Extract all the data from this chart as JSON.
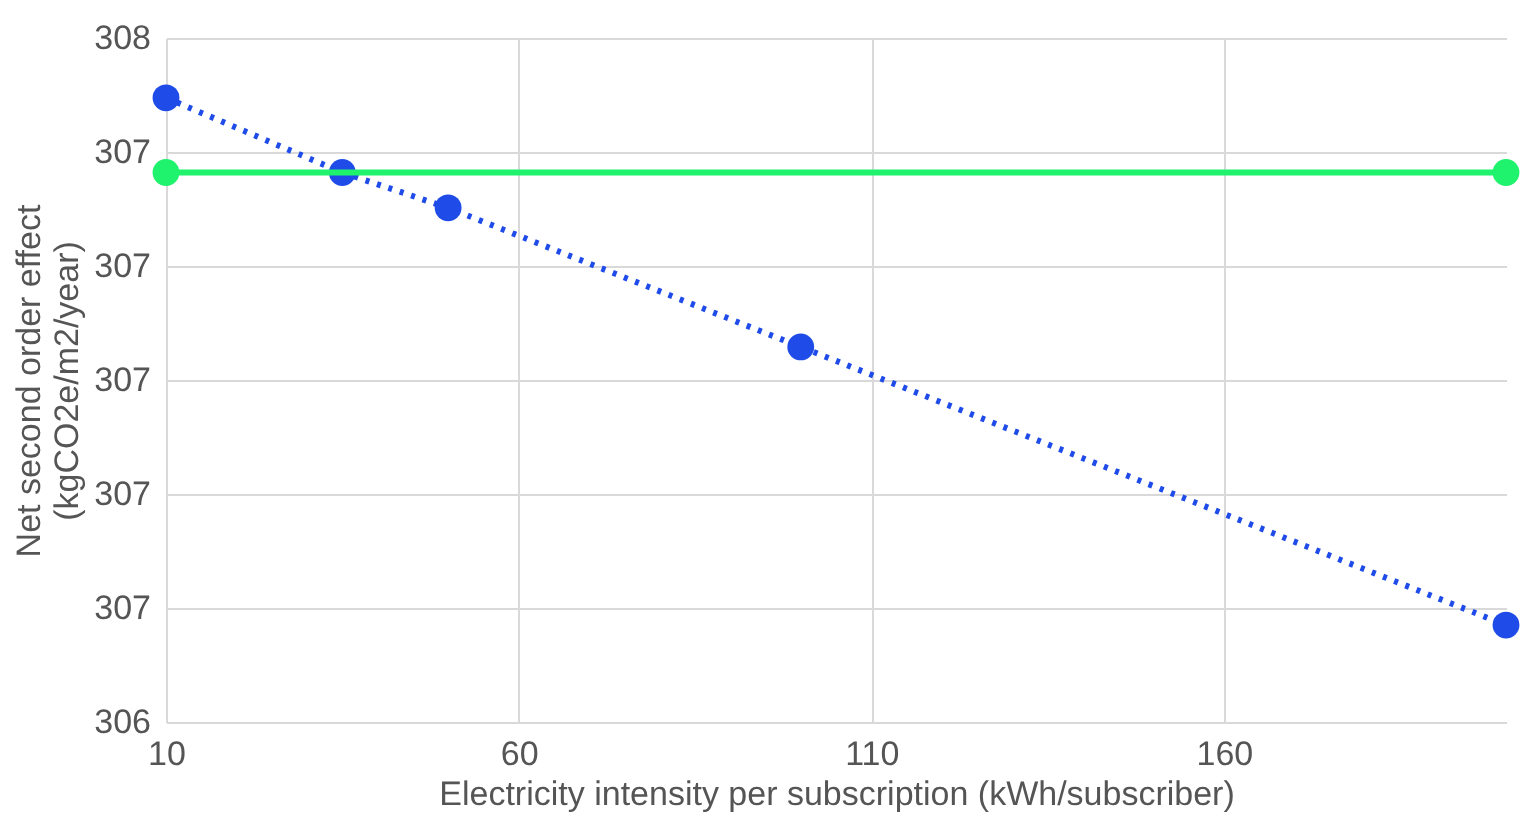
{
  "chart_data": {
    "type": "line",
    "xlabel": "Electricity intensity per subscription (kWh/subscriber)",
    "ylabel": "Net second order effect\n(kgCO2e/m2/year)",
    "xlim": [
      10,
      200
    ],
    "xticks": [
      10,
      60,
      110,
      160
    ],
    "ylim": [
      306.4,
      307.6
    ],
    "yticks": [
      {
        "value": 306.4,
        "label": "306"
      },
      {
        "value": 306.6,
        "label": "307"
      },
      {
        "value": 306.8,
        "label": "307"
      },
      {
        "value": 307.0,
        "label": "307"
      },
      {
        "value": 307.2,
        "label": "307"
      },
      {
        "value": 307.4,
        "label": "307"
      },
      {
        "value": 307.6,
        "label": "308"
      }
    ],
    "grid": true,
    "marker": "circle",
    "series": [
      {
        "color": "#1f4ce8",
        "line_style": "dotted",
        "x": [
          10,
          35,
          50,
          100,
          200
        ],
        "values": [
          307.495,
          307.364,
          307.302,
          307.058,
          306.57
        ]
      },
      {
        "color": "#1ff26c",
        "line_style": "solid",
        "x": [
          10,
          200
        ],
        "values": [
          307.364,
          307.364
        ]
      }
    ]
  }
}
